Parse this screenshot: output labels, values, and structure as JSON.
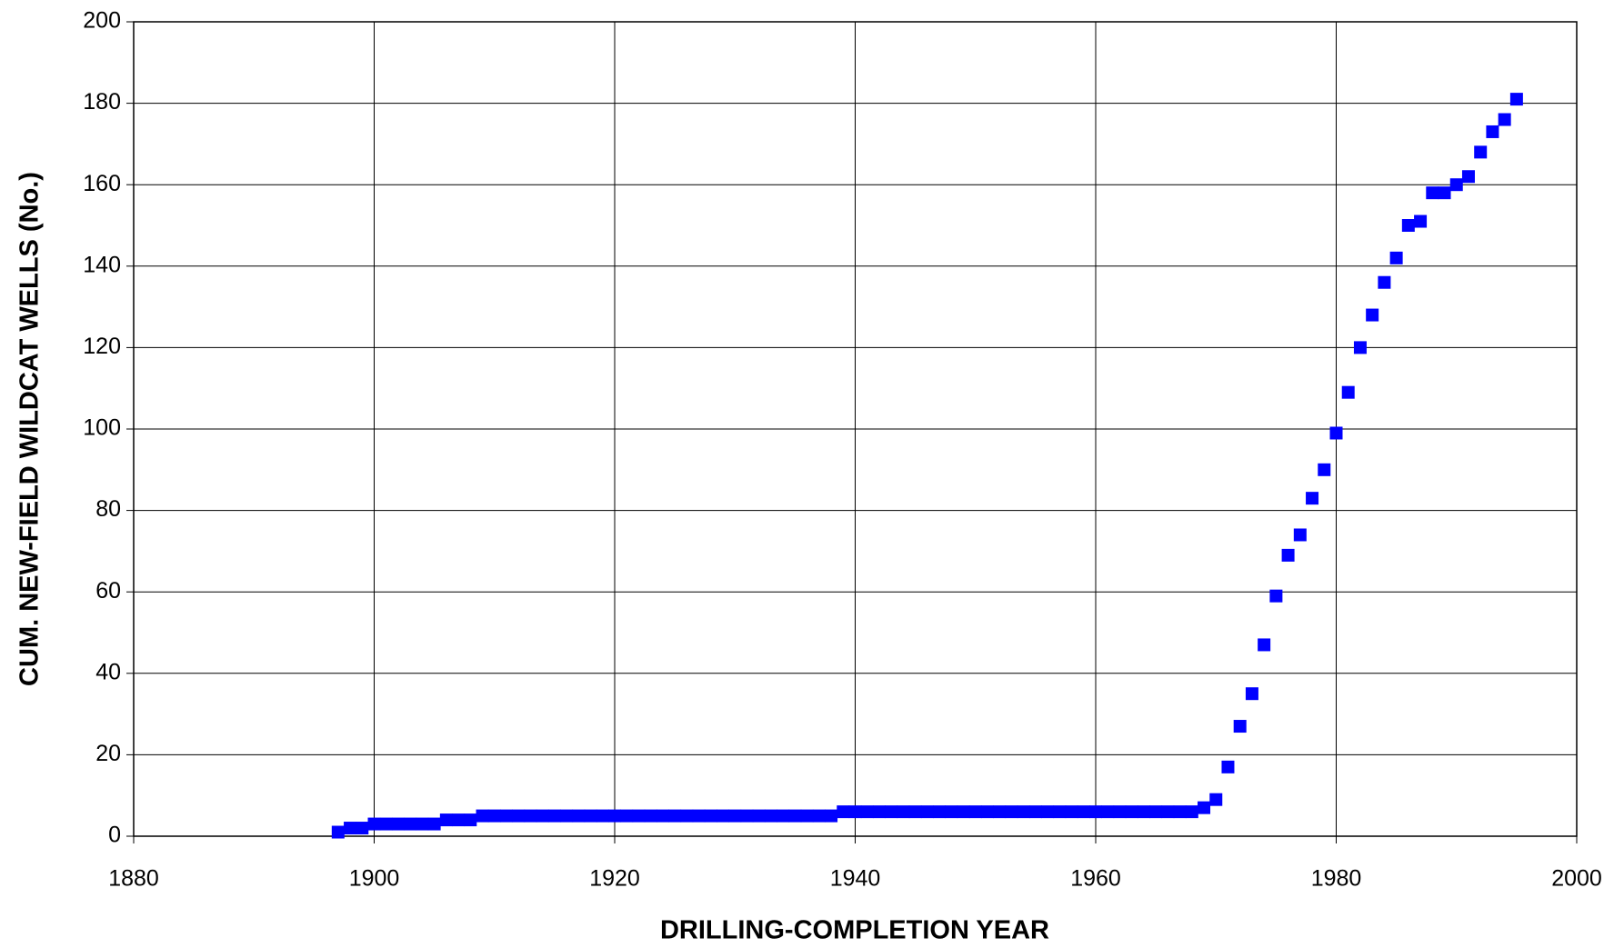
{
  "chart_data": {
    "type": "scatter",
    "xlabel": "DRILLING-COMPLETION YEAR",
    "ylabel": "CUM. NEW-FIELD WILDCAT WELLS (No.)",
    "x": [
      1897,
      1898,
      1899,
      1900,
      1901,
      1902,
      1903,
      1904,
      1905,
      1906,
      1907,
      1908,
      1909,
      1910,
      1911,
      1912,
      1913,
      1914,
      1915,
      1916,
      1917,
      1918,
      1919,
      1920,
      1921,
      1922,
      1923,
      1924,
      1925,
      1926,
      1927,
      1928,
      1929,
      1930,
      1931,
      1932,
      1933,
      1934,
      1935,
      1936,
      1937,
      1938,
      1939,
      1940,
      1941,
      1942,
      1943,
      1944,
      1945,
      1946,
      1947,
      1948,
      1949,
      1950,
      1951,
      1952,
      1953,
      1954,
      1955,
      1956,
      1957,
      1958,
      1959,
      1960,
      1961,
      1962,
      1963,
      1964,
      1965,
      1966,
      1967,
      1968,
      1969,
      1970,
      1971,
      1972,
      1973,
      1974,
      1975,
      1976,
      1977,
      1978,
      1979,
      1980,
      1981,
      1982,
      1983,
      1984,
      1985,
      1986,
      1987,
      1988,
      1989,
      1990,
      1991,
      1992,
      1993,
      1994,
      1995
    ],
    "values": [
      1,
      2,
      2,
      3,
      3,
      3,
      3,
      3,
      3,
      4,
      4,
      4,
      5,
      5,
      5,
      5,
      5,
      5,
      5,
      5,
      5,
      5,
      5,
      5,
      5,
      5,
      5,
      5,
      5,
      5,
      5,
      5,
      5,
      5,
      5,
      5,
      5,
      5,
      5,
      5,
      5,
      5,
      6,
      6,
      6,
      6,
      6,
      6,
      6,
      6,
      6,
      6,
      6,
      6,
      6,
      6,
      6,
      6,
      6,
      6,
      6,
      6,
      6,
      6,
      6,
      6,
      6,
      6,
      6,
      6,
      6,
      6,
      7,
      9,
      17,
      27,
      35,
      47,
      59,
      69,
      74,
      83,
      90,
      99,
      109,
      120,
      128,
      136,
      142,
      150,
      151,
      158,
      158,
      160,
      162,
      168,
      173,
      176,
      181
    ],
    "color": "#0000ff",
    "xlim": [
      1880,
      2000
    ],
    "xticks": [
      1880,
      1900,
      1920,
      1940,
      1960,
      1980,
      2000
    ],
    "ylim": [
      0,
      200
    ],
    "yticks": [
      0,
      20,
      40,
      60,
      80,
      100,
      120,
      140,
      160,
      180,
      200
    ],
    "grid": true
  }
}
